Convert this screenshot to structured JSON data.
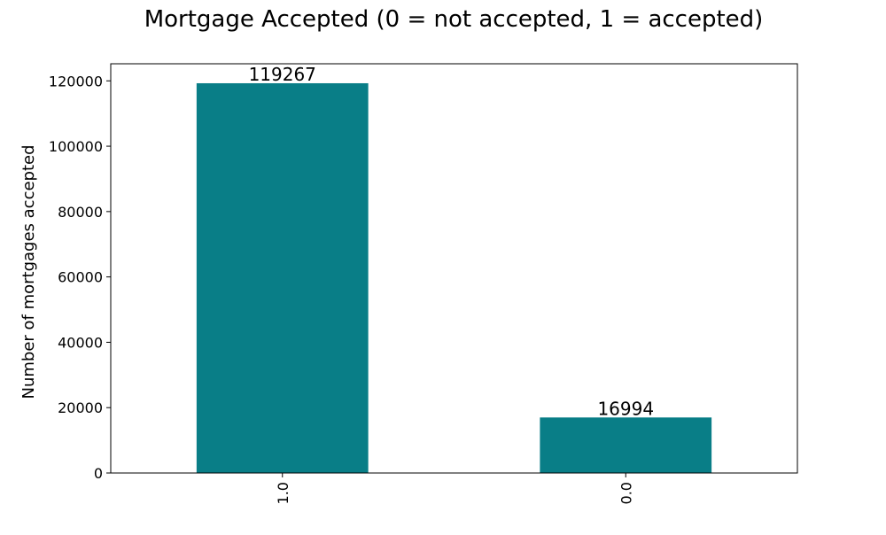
{
  "chart_data": {
    "type": "bar",
    "title": "Mortgage Accepted (0 = not accepted, 1 = accepted)",
    "xlabel": "",
    "ylabel": "Number of mortgages accepted",
    "categories": [
      "1.0",
      "0.0"
    ],
    "values": [
      119267,
      16994
    ],
    "data_labels": [
      "119267",
      "16994"
    ],
    "ylim": [
      0,
      125225
    ],
    "yticks": [
      0,
      20000,
      40000,
      60000,
      80000,
      100000,
      120000
    ],
    "ytick_labels": [
      "0",
      "20000",
      "40000",
      "60000",
      "80000",
      "100000",
      "120000"
    ],
    "bar_color": "#097e87",
    "grid": false,
    "legend": false
  }
}
